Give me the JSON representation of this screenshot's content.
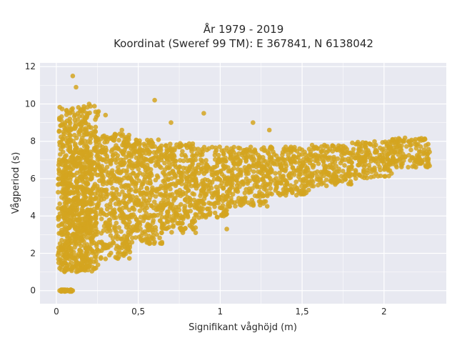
{
  "chart_data": {
    "type": "scatter",
    "title": "År 1979 - 2019",
    "subtitle": "Koordinat (Sweref 99 TM): E 367841, N 6138042",
    "xlabel": "Signifikant våghöjd (m)",
    "ylabel": "Vågperiod (s)",
    "xlim": [
      -0.1,
      2.38
    ],
    "ylim": [
      -0.7,
      12.2
    ],
    "xticks": [
      0,
      0.5,
      1,
      1.5,
      2
    ],
    "xtick_labels": [
      "0",
      "0,5",
      "1",
      "1,5",
      "2"
    ],
    "yticks": [
      0,
      2,
      4,
      6,
      8,
      10,
      12
    ],
    "ytick_labels": [
      "0",
      "2",
      "4",
      "6",
      "8",
      "10",
      "12"
    ],
    "grid": true,
    "marker_color": "#d4a520",
    "plot_background": "#e8e9f1",
    "points": [
      [
        0.01,
        1.9
      ],
      [
        0.02,
        1.2
      ],
      [
        0.05,
        1.5
      ],
      [
        0.08,
        2.3
      ],
      [
        0.1,
        3.0
      ],
      [
        0.12,
        3.8
      ],
      [
        0.15,
        2.4
      ],
      [
        0.2,
        3.2
      ],
      [
        0.25,
        4.5
      ],
      [
        0.3,
        3.6
      ],
      [
        0.35,
        5.0
      ],
      [
        0.4,
        4.2
      ],
      [
        0.45,
        3.4
      ],
      [
        0.5,
        4.8
      ],
      [
        0.55,
        5.2
      ],
      [
        0.6,
        4.0
      ],
      [
        0.65,
        5.5
      ],
      [
        0.7,
        4.6
      ],
      [
        0.75,
        5.8
      ],
      [
        0.8,
        5.0
      ],
      [
        0.85,
        6.0
      ],
      [
        0.9,
        5.4
      ],
      [
        0.95,
        6.2
      ],
      [
        1.0,
        5.6
      ],
      [
        1.05,
        6.4
      ],
      [
        1.1,
        5.9
      ],
      [
        1.15,
        6.6
      ],
      [
        1.2,
        6.1
      ],
      [
        1.25,
        6.8
      ],
      [
        1.3,
        6.3
      ],
      [
        1.35,
        7.0
      ],
      [
        1.4,
        6.5
      ],
      [
        1.45,
        7.2
      ],
      [
        1.5,
        6.7
      ],
      [
        1.55,
        7.3
      ],
      [
        1.6,
        6.8
      ],
      [
        1.65,
        7.4
      ],
      [
        1.7,
        6.9
      ],
      [
        1.75,
        7.6
      ],
      [
        1.8,
        7.1
      ],
      [
        1.85,
        7.7
      ],
      [
        1.9,
        7.3
      ],
      [
        1.95,
        7.8
      ],
      [
        2.0,
        7.4
      ],
      [
        2.05,
        7.9
      ],
      [
        2.1,
        7.6
      ],
      [
        2.15,
        8.0
      ],
      [
        2.2,
        7.8
      ],
      [
        2.25,
        8.1
      ],
      [
        0.1,
        11.5
      ],
      [
        0.12,
        10.9
      ],
      [
        0.2,
        10.0
      ],
      [
        0.3,
        9.4
      ],
      [
        0.6,
        10.2
      ],
      [
        0.9,
        9.5
      ],
      [
        1.2,
        9.0
      ],
      [
        1.3,
        8.6
      ],
      [
        0.02,
        0.0
      ],
      [
        0.06,
        0.0
      ],
      [
        0.1,
        0.0
      ],
      [
        0.05,
        4.1
      ],
      [
        0.05,
        6.5
      ],
      [
        0.04,
        7.8
      ],
      [
        0.08,
        8.8
      ],
      [
        0.15,
        9.7
      ],
      [
        0.4,
        8.6
      ],
      [
        0.7,
        9.0
      ],
      [
        1.04,
        3.3
      ],
      [
        0.85,
        3.1
      ],
      [
        0.6,
        2.6
      ],
      [
        0.3,
        1.7
      ],
      [
        0.15,
        1.2
      ]
    ],
    "clouds": [
      {
        "x0": 0.01,
        "x1": 0.26,
        "y0": 1.1,
        "y1": 9.9
      },
      {
        "x0": 0.03,
        "x1": 0.22,
        "y0": 1.0,
        "y1": 7.8
      },
      {
        "x0": 0.26,
        "x1": 0.45,
        "y0": 1.7,
        "y1": 8.4
      },
      {
        "x0": 0.45,
        "x1": 0.65,
        "y0": 2.5,
        "y1": 8.1
      },
      {
        "x0": 0.65,
        "x1": 0.85,
        "y0": 3.1,
        "y1": 7.9
      },
      {
        "x0": 0.85,
        "x1": 1.05,
        "y0": 3.9,
        "y1": 7.7
      },
      {
        "x0": 1.05,
        "x1": 1.3,
        "y0": 4.5,
        "y1": 7.7
      },
      {
        "x0": 1.3,
        "x1": 1.55,
        "y0": 5.1,
        "y1": 7.7
      },
      {
        "x0": 1.55,
        "x1": 1.8,
        "y0": 5.6,
        "y1": 7.8
      },
      {
        "x0": 1.8,
        "x1": 2.05,
        "y0": 6.0,
        "y1": 8.0
      },
      {
        "x0": 2.05,
        "x1": 2.28,
        "y0": 6.6,
        "y1": 8.2
      },
      {
        "x0": 0.02,
        "x1": 0.1,
        "y0": -0.05,
        "y1": 0.05
      }
    ]
  }
}
